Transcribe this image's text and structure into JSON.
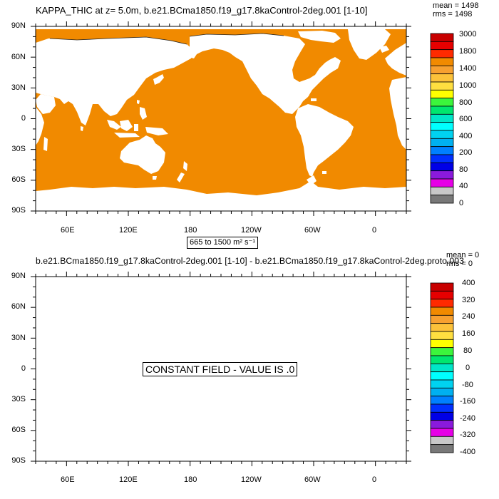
{
  "panel1": {
    "title": "KAPPA_THIC at z=   5.0m, b.e21.BCma1850.f19_g17.8kaControl-2deg.001 [1-10]",
    "mean_label": "mean = 1498",
    "rms_label": "rms = 1498",
    "range_label": "665 to 1500 m² s⁻¹",
    "field_fill_color": "#f18a00",
    "land_color": "#ffffff",
    "lat_labels": [
      "90N",
      "60N",
      "30N",
      "0",
      "30S",
      "60S",
      "90S"
    ],
    "lon_labels": [
      "60E",
      "120E",
      "180",
      "120W",
      "60W",
      "0"
    ],
    "colorbar_labels": [
      "3000",
      "1800",
      "1400",
      "1000",
      "800",
      "600",
      "400",
      "200",
      "80",
      "40",
      "0"
    ]
  },
  "panel2": {
    "title": "b.e21.BCma1850.f19_g17.8kaControl-2deg.001 [1-10] - b.e21.BCma1850.f19_g17.8kaControl-2deg.proto.003",
    "mean_label": "mean = 0",
    "rms_label": "rms = 0",
    "message": "CONSTANT FIELD - VALUE IS .0",
    "lat_labels": [
      "90N",
      "60N",
      "30N",
      "0",
      "30S",
      "60S",
      "90S"
    ],
    "lon_labels": [
      "60E",
      "120E",
      "180",
      "120W",
      "60W",
      "0"
    ],
    "colorbar_labels": [
      "400",
      "320",
      "240",
      "160",
      "80",
      "0",
      "-80",
      "-160",
      "-240",
      "-320",
      "-400"
    ]
  },
  "colorbar_colors": [
    "#c80000",
    "#e60000",
    "#ff2a00",
    "#f18a00",
    "#f7a030",
    "#fcc23a",
    "#ffdf40",
    "#ffff00",
    "#3cf53c",
    "#00e66e",
    "#00e6c8",
    "#00ffff",
    "#00d2f0",
    "#00b0f0",
    "#0080ff",
    "#0030ff",
    "#0000e6",
    "#8a1adc",
    "#e600e6",
    "#c8c8c8",
    "#787878"
  ]
}
